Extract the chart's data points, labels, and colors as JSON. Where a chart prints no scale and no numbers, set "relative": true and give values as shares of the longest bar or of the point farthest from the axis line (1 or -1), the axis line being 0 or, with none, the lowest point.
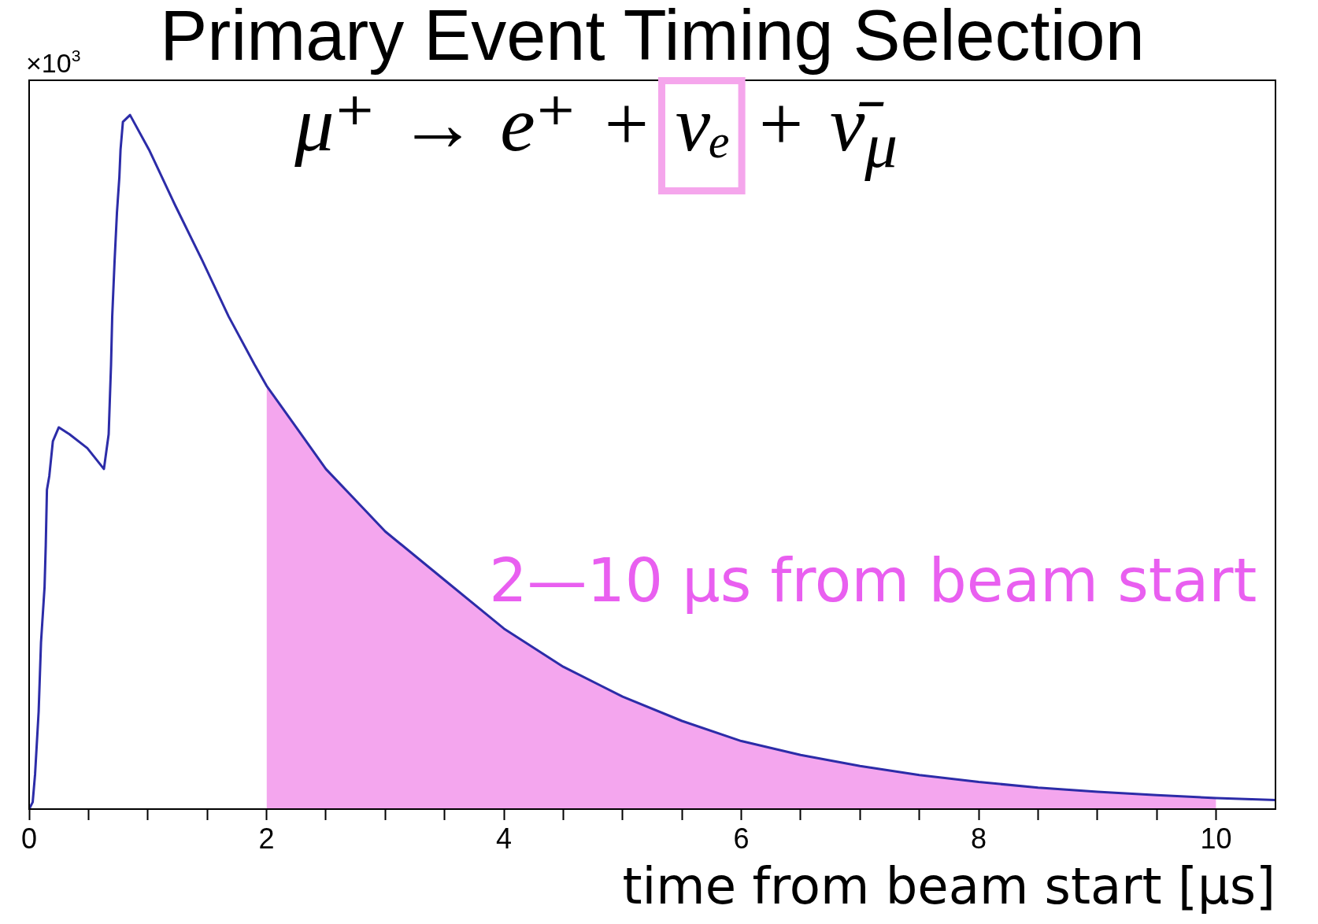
{
  "chart_data": {
    "type": "line",
    "title": "Primary Event Timing Selection",
    "subtitle": "μ⁺ → e⁺ + νₑ + ν̄$_{μ}$",
    "xlabel": "time from beam start [μs]",
    "annotations": [
      "2—10 μs from beam start",
      "×10$^{3}$"
    ],
    "relative": true,
    "xlim": [
      0,
      10.5
    ],
    "xticks": [
      0,
      {
        "value": 0.5,
        "label": null
      },
      {
        "value": 1,
        "label": null
      },
      {
        "value": 1.5,
        "label": null
      },
      2,
      {
        "value": 2.5,
        "label": null
      },
      {
        "value": 3,
        "label": null
      },
      {
        "value": 3.5,
        "label": null
      },
      4,
      {
        "value": 4.5,
        "label": null
      },
      {
        "value": 5,
        "label": null
      },
      {
        "value": 5.5,
        "label": null
      },
      6,
      {
        "value": 6.5,
        "label": null
      },
      {
        "value": 7,
        "label": null
      },
      {
        "value": 7.5,
        "label": null
      },
      8,
      {
        "value": 8.5,
        "label": null
      },
      {
        "value": 9,
        "label": null
      },
      {
        "value": 9.5,
        "label": null
      },
      10
    ],
    "series": [
      {
        "color": "#2c2ca8",
        "x": [
          0,
          0.03,
          0.05,
          0.08,
          0.1,
          0.13,
          0.14,
          0.15,
          0.17,
          0.2,
          0.25,
          0.34,
          0.49,
          0.63,
          0.67,
          0.69,
          0.7,
          0.72,
          0.74,
          0.76,
          0.77,
          0.79,
          0.85,
          1.01,
          1.23,
          1.46,
          1.68,
          1.9,
          2,
          2.25,
          2.5,
          2.75,
          3,
          3.5,
          4,
          4.5,
          5,
          5.5,
          6,
          6.5,
          7,
          7.5,
          8,
          8.5,
          9,
          9.5,
          10,
          10.5
        ],
        "values": [
          0,
          0.01,
          0.05,
          0.14,
          0.24,
          0.32,
          0.38,
          0.46,
          0.48,
          0.53,
          0.55,
          0.54,
          0.52,
          0.49,
          0.54,
          0.64,
          0.71,
          0.79,
          0.86,
          0.91,
          0.95,
          0.99,
          1,
          0.95,
          0.87,
          0.79,
          0.71,
          0.64,
          0.61,
          0.55,
          0.49,
          0.445,
          0.4,
          0.33,
          0.26,
          0.205,
          0.162,
          0.127,
          0.098,
          0.078,
          0.062,
          0.049,
          0.039,
          0.031,
          0.025,
          0.02,
          0.016,
          0.013
        ]
      },
      {
        "type": "area",
        "color": "#f4a6ee",
        "x": [
          2,
          2.25,
          2.5,
          2.75,
          3,
          3.5,
          4,
          4.5,
          5,
          5.5,
          6,
          6.5,
          7,
          7.5,
          8,
          8.5,
          9,
          9.5,
          10
        ],
        "values": [
          0.61,
          0.55,
          0.49,
          0.445,
          0.4,
          0.33,
          0.26,
          0.205,
          0.162,
          0.127,
          0.098,
          0.078,
          0.062,
          0.049,
          0.039,
          0.031,
          0.025,
          0.02,
          0.016
        ]
      }
    ]
  }
}
